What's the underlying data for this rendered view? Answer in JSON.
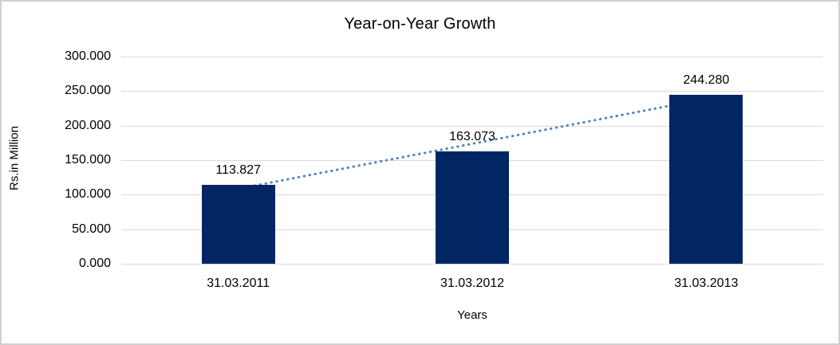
{
  "chart_data": {
    "type": "bar",
    "title": "Year-on-Year Growth",
    "xlabel": "Years",
    "ylabel": "Rs.in Million",
    "categories": [
      "31.03.2011",
      "31.03.2012",
      "31.03.2013"
    ],
    "values": [
      113.827,
      163.073,
      244.28
    ],
    "value_labels": [
      "113.827",
      "163.073",
      "244.280"
    ],
    "ylim": [
      0,
      300
    ],
    "ytick_step": 50,
    "ytick_labels": [
      "0.000",
      "50.000",
      "100.000",
      "150.000",
      "200.000",
      "250.000",
      "300.000"
    ],
    "grid": true,
    "legend": false,
    "trendline": {
      "type": "linear",
      "style": "dotted",
      "color": "#4f81bd"
    },
    "colors": {
      "bar": "#022663",
      "gridline": "#d9d9d9",
      "text": "#000000",
      "frame_border": "#d0d0d0",
      "background": "#ffffff"
    }
  }
}
